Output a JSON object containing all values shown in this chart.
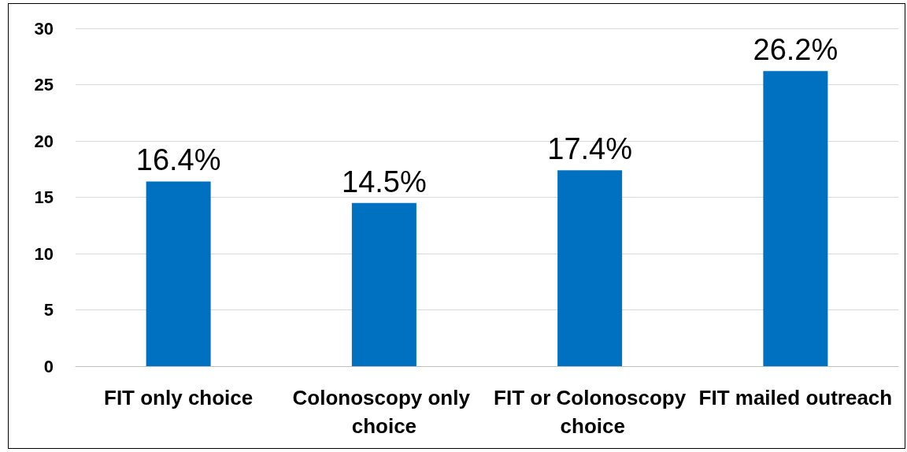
{
  "chart_data": {
    "type": "bar",
    "categories": [
      "FIT only choice",
      "Colonoscopy only choice",
      "FIT or Colonoscopy choice",
      "FIT mailed outreach"
    ],
    "values": [
      16.4,
      14.5,
      17.4,
      26.2
    ],
    "value_labels": [
      "16.4%",
      "14.5%",
      "17.4%",
      "26.2%"
    ],
    "color": "#0070c0",
    "ylim": [
      0,
      30
    ],
    "yticks": [
      0,
      5,
      10,
      15,
      20,
      25,
      30
    ],
    "grid": "y"
  }
}
